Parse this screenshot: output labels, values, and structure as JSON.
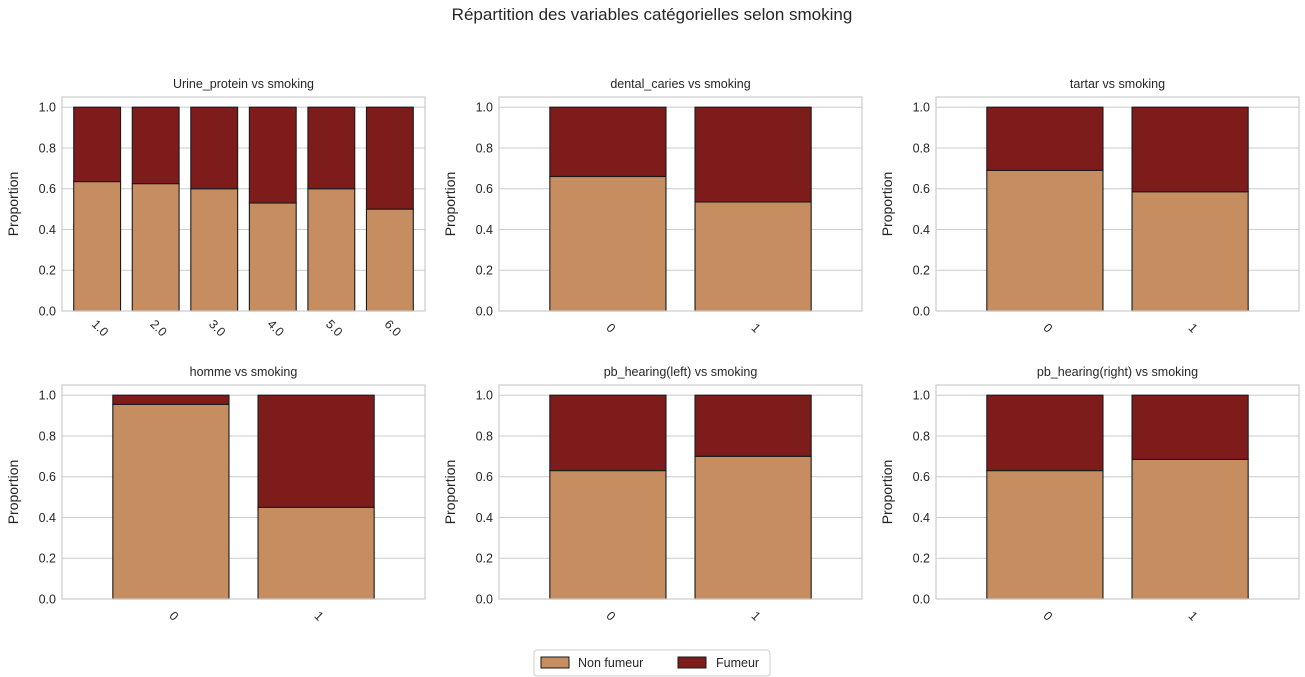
{
  "figure": {
    "title": "Répartition des variables catégorielles selon smoking"
  },
  "legend": {
    "placement": "bottom-center",
    "items": [
      {
        "label": "Non fumeur",
        "color": "#c68d61"
      },
      {
        "label": "Fumeur",
        "color": "#7e1b1b"
      }
    ]
  },
  "chart_data": [
    {
      "type": "bar",
      "stacked": true,
      "title": "Urine_protein vs smoking",
      "ylabel": "Proportion",
      "xlabel": "",
      "ylim": [
        0,
        1.05
      ],
      "yticks": [
        "0.0",
        "0.2",
        "0.4",
        "0.6",
        "0.8",
        "1.0"
      ],
      "grid": true,
      "categories": [
        "1.0",
        "2.0",
        "3.0",
        "4.0",
        "5.0",
        "6.0"
      ],
      "series": [
        {
          "name": "Non fumeur",
          "values": [
            0.635,
            0.625,
            0.6,
            0.53,
            0.6,
            0.5
          ]
        },
        {
          "name": "Fumeur",
          "values": [
            0.365,
            0.375,
            0.4,
            0.47,
            0.4,
            0.5
          ]
        }
      ]
    },
    {
      "type": "bar",
      "stacked": true,
      "title": "dental_caries vs smoking",
      "ylabel": "Proportion",
      "xlabel": "",
      "ylim": [
        0,
        1.05
      ],
      "yticks": [
        "0.0",
        "0.2",
        "0.4",
        "0.6",
        "0.8",
        "1.0"
      ],
      "grid": true,
      "categories": [
        "0",
        "1"
      ],
      "series": [
        {
          "name": "Non fumeur",
          "values": [
            0.66,
            0.535
          ]
        },
        {
          "name": "Fumeur",
          "values": [
            0.34,
            0.465
          ]
        }
      ]
    },
    {
      "type": "bar",
      "stacked": true,
      "title": "tartar vs smoking",
      "ylabel": "Proportion",
      "xlabel": "",
      "ylim": [
        0,
        1.05
      ],
      "yticks": [
        "0.0",
        "0.2",
        "0.4",
        "0.6",
        "0.8",
        "1.0"
      ],
      "grid": true,
      "categories": [
        "0",
        "1"
      ],
      "series": [
        {
          "name": "Non fumeur",
          "values": [
            0.69,
            0.585
          ]
        },
        {
          "name": "Fumeur",
          "values": [
            0.31,
            0.415
          ]
        }
      ]
    },
    {
      "type": "bar",
      "stacked": true,
      "title": "homme vs smoking",
      "ylabel": "Proportion",
      "xlabel": "",
      "ylim": [
        0,
        1.05
      ],
      "yticks": [
        "0.0",
        "0.2",
        "0.4",
        "0.6",
        "0.8",
        "1.0"
      ],
      "grid": true,
      "categories": [
        "0",
        "1"
      ],
      "series": [
        {
          "name": "Non fumeur",
          "values": [
            0.955,
            0.45
          ]
        },
        {
          "name": "Fumeur",
          "values": [
            0.045,
            0.55
          ]
        }
      ]
    },
    {
      "type": "bar",
      "stacked": true,
      "title": "pb_hearing(left) vs smoking",
      "ylabel": "Proportion",
      "xlabel": "",
      "ylim": [
        0,
        1.05
      ],
      "yticks": [
        "0.0",
        "0.2",
        "0.4",
        "0.6",
        "0.8",
        "1.0"
      ],
      "grid": true,
      "categories": [
        "0",
        "1"
      ],
      "series": [
        {
          "name": "Non fumeur",
          "values": [
            0.63,
            0.7
          ]
        },
        {
          "name": "Fumeur",
          "values": [
            0.37,
            0.3
          ]
        }
      ]
    },
    {
      "type": "bar",
      "stacked": true,
      "title": "pb_hearing(right) vs smoking",
      "ylabel": "Proportion",
      "xlabel": "",
      "ylim": [
        0,
        1.05
      ],
      "yticks": [
        "0.0",
        "0.2",
        "0.4",
        "0.6",
        "0.8",
        "1.0"
      ],
      "grid": true,
      "categories": [
        "0",
        "1"
      ],
      "series": [
        {
          "name": "Non fumeur",
          "values": [
            0.63,
            0.685
          ]
        },
        {
          "name": "Fumeur",
          "values": [
            0.37,
            0.315
          ]
        }
      ]
    }
  ]
}
